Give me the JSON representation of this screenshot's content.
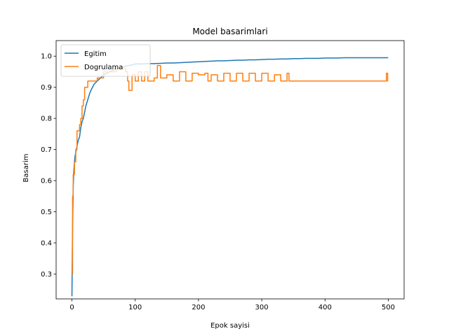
{
  "chart_data": {
    "type": "line",
    "title": "Model basarimlari",
    "xlabel": "Epok sayisi",
    "ylabel": "Basarim",
    "xlim": [
      -25,
      525
    ],
    "ylim": [
      0.22,
      1.05
    ],
    "xticks": [
      0,
      100,
      200,
      300,
      400,
      500
    ],
    "yticks": [
      0.3,
      0.4,
      0.5,
      0.6,
      0.7,
      0.8,
      0.9,
      1.0
    ],
    "xtick_labels": [
      "0",
      "100",
      "200",
      "300",
      "400",
      "500"
    ],
    "ytick_labels": [
      "0.3",
      "0.4",
      "0.5",
      "0.6",
      "0.7",
      "0.8",
      "0.9",
      "1.0"
    ],
    "grid": false,
    "legend_position": "top-left",
    "series": [
      {
        "name": "Egitim",
        "color": "#1f77b4",
        "x": [
          0,
          1,
          2,
          3,
          4,
          5,
          6,
          8,
          10,
          12,
          14,
          16,
          18,
          20,
          22,
          25,
          28,
          30,
          35,
          40,
          45,
          50,
          55,
          60,
          65,
          70,
          75,
          80,
          85,
          90,
          95,
          100,
          110,
          120,
          130,
          140,
          150,
          160,
          170,
          180,
          190,
          200,
          210,
          220,
          230,
          240,
          250,
          260,
          270,
          280,
          290,
          300,
          310,
          320,
          330,
          340,
          350,
          360,
          370,
          380,
          390,
          400,
          410,
          420,
          430,
          440,
          450,
          460,
          470,
          480,
          490,
          499
        ],
        "y": [
          0.23,
          0.45,
          0.58,
          0.63,
          0.66,
          0.68,
          0.69,
          0.71,
          0.73,
          0.74,
          0.77,
          0.79,
          0.8,
          0.82,
          0.84,
          0.86,
          0.88,
          0.89,
          0.91,
          0.92,
          0.93,
          0.94,
          0.945,
          0.95,
          0.955,
          0.96,
          0.962,
          0.965,
          0.968,
          0.97,
          0.972,
          0.975,
          0.975,
          0.976,
          0.976,
          0.977,
          0.978,
          0.978,
          0.979,
          0.98,
          0.981,
          0.982,
          0.983,
          0.984,
          0.985,
          0.985,
          0.986,
          0.987,
          0.987,
          0.988,
          0.988,
          0.989,
          0.99,
          0.99,
          0.991,
          0.991,
          0.992,
          0.992,
          0.993,
          0.993,
          0.993,
          0.994,
          0.994,
          0.994,
          0.995,
          0.995,
          0.995,
          0.995,
          0.995,
          0.995,
          0.995,
          0.995
        ]
      },
      {
        "name": "Dogrulama",
        "color": "#ff7f0e",
        "x": [
          0,
          1,
          2,
          4,
          6,
          8,
          10,
          12,
          14,
          16,
          18,
          20,
          22,
          25,
          28,
          30,
          35,
          40,
          45,
          50,
          55,
          60,
          70,
          80,
          85,
          88,
          90,
          95,
          100,
          105,
          110,
          115,
          120,
          130,
          135,
          140,
          150,
          160,
          170,
          180,
          190,
          200,
          210,
          215,
          220,
          230,
          240,
          250,
          260,
          270,
          280,
          290,
          300,
          310,
          320,
          330,
          340,
          343,
          350,
          360,
          380,
          400,
          420,
          440,
          460,
          480,
          495,
          497,
          499
        ],
        "y": [
          0.3,
          0.55,
          0.62,
          0.66,
          0.7,
          0.76,
          0.76,
          0.78,
          0.8,
          0.84,
          0.86,
          0.9,
          0.9,
          0.92,
          0.92,
          0.92,
          0.92,
          0.93,
          0.93,
          0.95,
          0.95,
          0.95,
          0.96,
          0.96,
          0.95,
          0.92,
          0.89,
          0.94,
          0.92,
          0.95,
          0.92,
          0.95,
          0.92,
          0.93,
          0.97,
          0.93,
          0.94,
          0.92,
          0.95,
          0.92,
          0.945,
          0.94,
          0.945,
          0.92,
          0.94,
          0.92,
          0.945,
          0.92,
          0.945,
          0.92,
          0.945,
          0.92,
          0.945,
          0.92,
          0.94,
          0.92,
          0.945,
          0.92,
          0.92,
          0.92,
          0.92,
          0.92,
          0.92,
          0.92,
          0.92,
          0.92,
          0.92,
          0.945,
          0.92
        ]
      }
    ]
  }
}
